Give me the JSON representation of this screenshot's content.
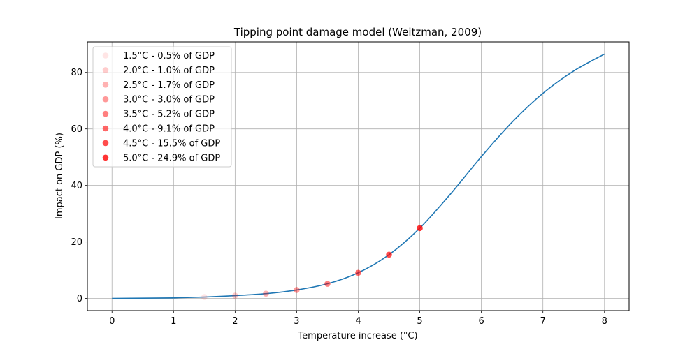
{
  "chart_data": {
    "type": "line",
    "title": "Tipping point damage model (Weitzman, 2009)",
    "xlabel": "Temperature increase (°C)",
    "ylabel": "Impact on GDP (%)",
    "xlim": [
      -0.4,
      8.4
    ],
    "ylim": [
      -4.3,
      90.8
    ],
    "xticks": [
      0,
      1,
      2,
      3,
      4,
      5,
      6,
      7,
      8
    ],
    "yticks": [
      0,
      20,
      40,
      60,
      80
    ],
    "grid": true,
    "legend_position": "upper-left",
    "colors": {
      "line": "#1f77b4",
      "points": "#ff0000"
    },
    "series": [
      {
        "type": "line",
        "x": [
          0,
          0.5,
          1,
          1.5,
          2,
          2.5,
          3,
          3.5,
          4,
          4.5,
          5,
          5.5,
          6,
          6.5,
          7,
          7.5,
          8
        ],
        "values": [
          0,
          0.1,
          0.2,
          0.5,
          1.0,
          1.7,
          3.0,
          5.2,
          9.1,
          15.5,
          24.9,
          37.0,
          50.2,
          62.4,
          72.6,
          80.5,
          86.5
        ]
      }
    ],
    "points": [
      {
        "x": 1.5,
        "y": 0.5,
        "label": "1.5°C - 0.5% of GDP",
        "alpha": 0.1
      },
      {
        "x": 2.0,
        "y": 1.0,
        "label": "2.0°C - 1.0% of GDP",
        "alpha": 0.2
      },
      {
        "x": 2.5,
        "y": 1.7,
        "label": "2.5°C - 1.7% of GDP",
        "alpha": 0.3
      },
      {
        "x": 3.0,
        "y": 3.0,
        "label": "3.0°C - 3.0% of GDP",
        "alpha": 0.4
      },
      {
        "x": 3.5,
        "y": 5.2,
        "label": "3.5°C - 5.2% of GDP",
        "alpha": 0.5
      },
      {
        "x": 4.0,
        "y": 9.1,
        "label": "4.0°C - 9.1% of GDP",
        "alpha": 0.6
      },
      {
        "x": 4.5,
        "y": 15.5,
        "label": "4.5°C - 15.5% of GDP",
        "alpha": 0.7
      },
      {
        "x": 5.0,
        "y": 24.9,
        "label": "5.0°C - 24.9% of GDP",
        "alpha": 0.8
      }
    ]
  }
}
